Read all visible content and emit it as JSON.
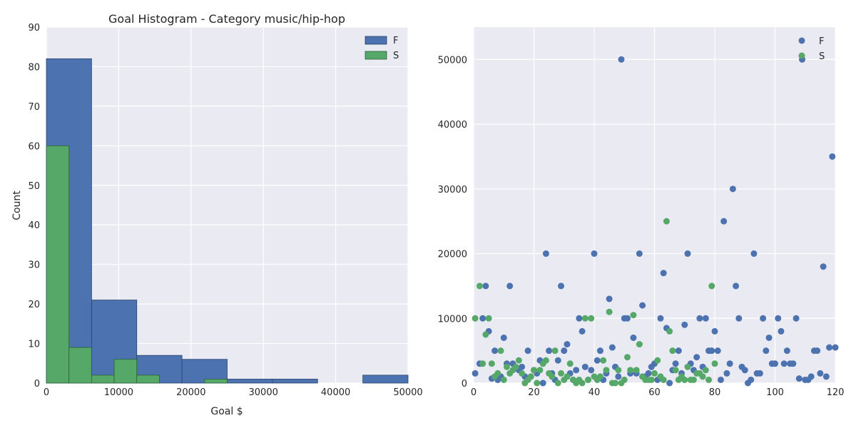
{
  "chart_data": [
    {
      "type": "bar",
      "subtype": "histogram",
      "title": "Goal Histogram - Category music/hip-hop",
      "xlabel": "Goal $",
      "ylabel": "Count",
      "xlim": [
        0,
        50000
      ],
      "ylim": [
        0,
        90
      ],
      "xticks": [
        "0",
        "10000",
        "20000",
        "30000",
        "40000",
        "50000"
      ],
      "yticks": [
        "0",
        "10",
        "20",
        "30",
        "40",
        "50",
        "60",
        "70",
        "80",
        "90"
      ],
      "grid": true,
      "legend_position": "top-right",
      "series": [
        {
          "name": "F",
          "color": "#4c72b0",
          "bins": [
            {
              "start": 0,
              "end": 6250,
              "count": 82
            },
            {
              "start": 6250,
              "end": 12500,
              "count": 21
            },
            {
              "start": 12500,
              "end": 18750,
              "count": 7
            },
            {
              "start": 18750,
              "end": 25000,
              "count": 6
            },
            {
              "start": 25000,
              "end": 31250,
              "count": 1
            },
            {
              "start": 31250,
              "end": 37500,
              "count": 1
            },
            {
              "start": 37500,
              "end": 43750,
              "count": 0
            },
            {
              "start": 43750,
              "end": 50000,
              "count": 2
            }
          ]
        },
        {
          "name": "S",
          "color": "#55a868",
          "bins": [
            {
              "start": 0,
              "end": 3125,
              "count": 60
            },
            {
              "start": 3125,
              "end": 6250,
              "count": 9
            },
            {
              "start": 6250,
              "end": 9375,
              "count": 2
            },
            {
              "start": 9375,
              "end": 12500,
              "count": 6
            },
            {
              "start": 12500,
              "end": 15625,
              "count": 2
            },
            {
              "start": 15625,
              "end": 18750,
              "count": 0
            },
            {
              "start": 18750,
              "end": 21875,
              "count": 0
            },
            {
              "start": 21875,
              "end": 25000,
              "count": 1
            }
          ]
        }
      ]
    },
    {
      "type": "scatter",
      "title": "",
      "xlabel": "",
      "ylabel": "",
      "xlim": [
        0,
        120
      ],
      "ylim": [
        0,
        55000
      ],
      "xticks": [
        "0",
        "20",
        "40",
        "60",
        "80",
        "100",
        "120"
      ],
      "yticks": [
        "0",
        "10000",
        "20000",
        "30000",
        "40000",
        "50000"
      ],
      "grid": true,
      "legend_position": "top-right",
      "series": [
        {
          "name": "F",
          "color": "#4c72b0",
          "points": [
            [
              0.5,
              1500
            ],
            [
              2,
              3000
            ],
            [
              3,
              10000
            ],
            [
              4,
              15000
            ],
            [
              5,
              8000
            ],
            [
              6,
              700
            ],
            [
              7,
              5000
            ],
            [
              8,
              500
            ],
            [
              9,
              1000
            ],
            [
              10,
              7000
            ],
            [
              11,
              3000
            ],
            [
              12,
              15000
            ],
            [
              13,
              3000
            ],
            [
              14,
              2500
            ],
            [
              15,
              2000
            ],
            [
              16,
              2500
            ],
            [
              17,
              1000
            ],
            [
              18,
              5000
            ],
            [
              19,
              1000
            ],
            [
              20,
              2000
            ],
            [
              21,
              1500
            ],
            [
              22,
              3500
            ],
            [
              23,
              0
            ],
            [
              24,
              20000
            ],
            [
              25,
              5000
            ],
            [
              26,
              1500
            ],
            [
              27,
              500
            ],
            [
              28,
              3500
            ],
            [
              29,
              15000
            ],
            [
              30,
              5000
            ],
            [
              31,
              6000
            ],
            [
              32,
              1500
            ],
            [
              33,
              500
            ],
            [
              34,
              2000
            ],
            [
              35,
              10000
            ],
            [
              36,
              8000
            ],
            [
              37,
              2500
            ],
            [
              38,
              500
            ],
            [
              39,
              2000
            ],
            [
              40,
              20000
            ],
            [
              41,
              3500
            ],
            [
              42,
              5000
            ],
            [
              43,
              500
            ],
            [
              44,
              1500
            ],
            [
              45,
              13000
            ],
            [
              46,
              5500
            ],
            [
              47,
              2500
            ],
            [
              48,
              1000
            ],
            [
              49,
              50000
            ],
            [
              50,
              10000
            ],
            [
              51,
              10000
            ],
            [
              52,
              1500
            ],
            [
              53,
              7000
            ],
            [
              54,
              1500
            ],
            [
              55,
              20000
            ],
            [
              56,
              12000
            ],
            [
              57,
              1000
            ],
            [
              58,
              1500
            ],
            [
              59,
              2500
            ],
            [
              60,
              3000
            ],
            [
              61,
              500
            ],
            [
              62,
              10000
            ],
            [
              63,
              17000
            ],
            [
              64,
              8500
            ],
            [
              65,
              0
            ],
            [
              66,
              2000
            ],
            [
              67,
              3000
            ],
            [
              68,
              5000
            ],
            [
              69,
              1500
            ],
            [
              70,
              9000
            ],
            [
              71,
              20000
            ],
            [
              72,
              3000
            ],
            [
              73,
              2000
            ],
            [
              74,
              4000
            ],
            [
              75,
              10000
            ],
            [
              76,
              2500
            ],
            [
              77,
              10000
            ],
            [
              78,
              5000
            ],
            [
              79,
              5000
            ],
            [
              80,
              8000
            ],
            [
              81,
              5000
            ],
            [
              82,
              500
            ],
            [
              83,
              25000
            ],
            [
              84,
              1500
            ],
            [
              85,
              3000
            ],
            [
              86,
              30000
            ],
            [
              87,
              15000
            ],
            [
              88,
              10000
            ],
            [
              89,
              2500
            ],
            [
              90,
              2000
            ],
            [
              91,
              0
            ],
            [
              92,
              500
            ],
            [
              93,
              20000
            ],
            [
              94,
              1500
            ],
            [
              95,
              1500
            ],
            [
              96,
              10000
            ],
            [
              97,
              5000
            ],
            [
              98,
              7000
            ],
            [
              99,
              3000
            ],
            [
              100,
              3000
            ],
            [
              101,
              10000
            ],
            [
              102,
              8000
            ],
            [
              103,
              3000
            ],
            [
              104,
              5000
            ],
            [
              105,
              3000
            ],
            [
              106,
              3000
            ],
            [
              107,
              10000
            ],
            [
              108,
              700
            ],
            [
              109,
              50000
            ],
            [
              110,
              500
            ],
            [
              111,
              500
            ],
            [
              112,
              1000
            ],
            [
              113,
              5000
            ],
            [
              114,
              5000
            ],
            [
              115,
              1500
            ],
            [
              116,
              18000
            ],
            [
              117,
              1000
            ],
            [
              118,
              5500
            ],
            [
              119,
              35000
            ],
            [
              120,
              5500
            ]
          ]
        },
        {
          "name": "S",
          "color": "#55a868",
          "points": [
            [
              0.5,
              10000
            ],
            [
              2,
              15000
            ],
            [
              3,
              3000
            ],
            [
              4,
              7500
            ],
            [
              5,
              10000
            ],
            [
              6,
              3000
            ],
            [
              7,
              1000
            ],
            [
              8,
              1500
            ],
            [
              9,
              5000
            ],
            [
              10,
              500
            ],
            [
              11,
              2500
            ],
            [
              12,
              1500
            ],
            [
              13,
              2000
            ],
            [
              14,
              2500
            ],
            [
              15,
              3500
            ],
            [
              16,
              1500
            ],
            [
              17,
              0
            ],
            [
              18,
              500
            ],
            [
              19,
              1000
            ],
            [
              20,
              2000
            ],
            [
              21,
              0
            ],
            [
              22,
              2000
            ],
            [
              23,
              3000
            ],
            [
              24,
              3500
            ],
            [
              25,
              1500
            ],
            [
              26,
              1000
            ],
            [
              27,
              5000
            ],
            [
              28,
              0
            ],
            [
              29,
              1500
            ],
            [
              30,
              500
            ],
            [
              31,
              1000
            ],
            [
              32,
              3000
            ],
            [
              33,
              500
            ],
            [
              34,
              0
            ],
            [
              35,
              500
            ],
            [
              36,
              0
            ],
            [
              37,
              10000
            ],
            [
              38,
              500
            ],
            [
              39,
              10000
            ],
            [
              40,
              1000
            ],
            [
              41,
              500
            ],
            [
              42,
              1000
            ],
            [
              43,
              3500
            ],
            [
              44,
              2000
            ],
            [
              45,
              11000
            ],
            [
              46,
              0
            ],
            [
              47,
              0
            ],
            [
              48,
              2000
            ],
            [
              49,
              0
            ],
            [
              50,
              500
            ],
            [
              51,
              4000
            ],
            [
              52,
              2000
            ],
            [
              53,
              10500
            ],
            [
              54,
              2000
            ],
            [
              55,
              6000
            ],
            [
              56,
              1000
            ],
            [
              57,
              500
            ],
            [
              58,
              500
            ],
            [
              59,
              500
            ],
            [
              60,
              1500
            ],
            [
              61,
              3500
            ],
            [
              62,
              1000
            ],
            [
              63,
              500
            ],
            [
              64,
              25000
            ],
            [
              65,
              8000
            ],
            [
              66,
              5000
            ],
            [
              67,
              2000
            ],
            [
              68,
              500
            ],
            [
              69,
              1000
            ],
            [
              70,
              500
            ],
            [
              71,
              2500
            ],
            [
              72,
              500
            ],
            [
              73,
              500
            ],
            [
              74,
              1500
            ],
            [
              75,
              1500
            ],
            [
              76,
              1000
            ],
            [
              77,
              2000
            ],
            [
              78,
              500
            ],
            [
              79,
              15000
            ],
            [
              80,
              3000
            ]
          ]
        }
      ]
    }
  ]
}
